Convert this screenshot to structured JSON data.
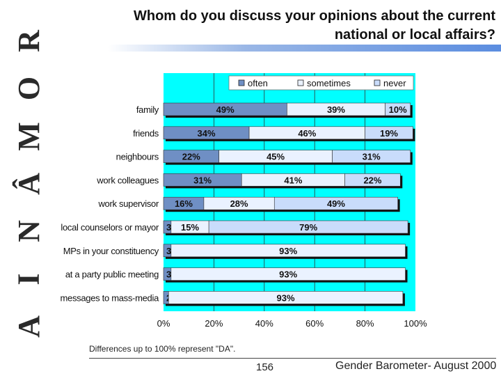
{
  "side_letters": [
    "R",
    "O",
    "M",
    "Â",
    "N",
    "I",
    "A"
  ],
  "title_lines": [
    "Whom do you discuss your opinions about the current",
    "national or local affairs?"
  ],
  "footnote": "Differences up to 100% represent \"DA\".",
  "page_number": "156",
  "source_label": "Gender Barometer- August 2000",
  "colors": {
    "plot_bg": "#00ffff",
    "often": "#6f8fc4",
    "sometimes": "#eaf2ff",
    "never": "#c9dcfb",
    "shadow": "#111111"
  },
  "chart_data": {
    "type": "bar",
    "orientation": "horizontal",
    "stacked": true,
    "title": "Whom do you discuss your opinions about the current national or local affairs?",
    "categories": [
      "family",
      "friends",
      "neighbours",
      "work colleagues",
      "work supervisor",
      "local counselors or mayor",
      "MPs in your constituency",
      "at a party public meeting",
      "messages to mass-media"
    ],
    "series": [
      {
        "name": "often",
        "values": [
          49,
          34,
          22,
          31,
          16,
          3,
          3,
          3,
          2
        ]
      },
      {
        "name": "sometimes",
        "values": [
          39,
          46,
          45,
          41,
          28,
          15,
          93,
          93,
          93
        ]
      },
      {
        "name": "never",
        "values": [
          10,
          19,
          31,
          22,
          49,
          79,
          null,
          null,
          null
        ]
      }
    ],
    "labels": [
      [
        "49%",
        "39%",
        "10%"
      ],
      [
        "34%",
        "46%",
        "19%"
      ],
      [
        "22%",
        "45%",
        "31%"
      ],
      [
        "31%",
        "41%",
        "22%"
      ],
      [
        "16%",
        "28%",
        "49%"
      ],
      [
        "3%",
        "15%",
        "79%"
      ],
      [
        "3%",
        "93%",
        ""
      ],
      [
        "3%",
        "93%",
        ""
      ],
      [
        "2%",
        "93%",
        ""
      ]
    ],
    "xlim": [
      0,
      100
    ],
    "x_ticks": [
      "0%",
      "20%",
      "40%",
      "60%",
      "80%",
      "100%"
    ],
    "legend": [
      "often",
      "sometimes",
      "never"
    ],
    "legend_position": "top-right",
    "grid": true
  }
}
